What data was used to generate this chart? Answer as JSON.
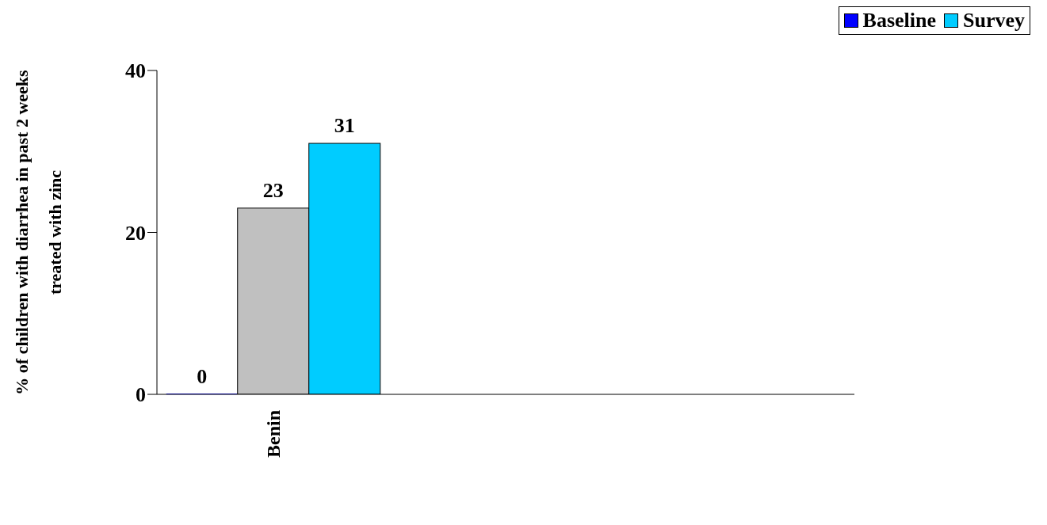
{
  "chart_data": {
    "type": "bar",
    "ylabel": "% of children with diarrhea in past 2 weeks\ntreated with zinc",
    "categories": [
      "Benin",
      null,
      null
    ],
    "series": [
      {
        "name": "Baseline",
        "color": "#0000ff",
        "values": [
          0,
          null,
          null
        ]
      },
      {
        "color": "#c0c0c0",
        "values": [
          23,
          null,
          null
        ]
      },
      {
        "name": "Survey",
        "color": "#00ccff",
        "values": [
          31,
          null,
          null
        ]
      }
    ],
    "ylim": [
      0,
      40
    ],
    "yticks": [
      0,
      20,
      40
    ],
    "data_labels": true,
    "legend": "top right",
    "grid": false
  }
}
